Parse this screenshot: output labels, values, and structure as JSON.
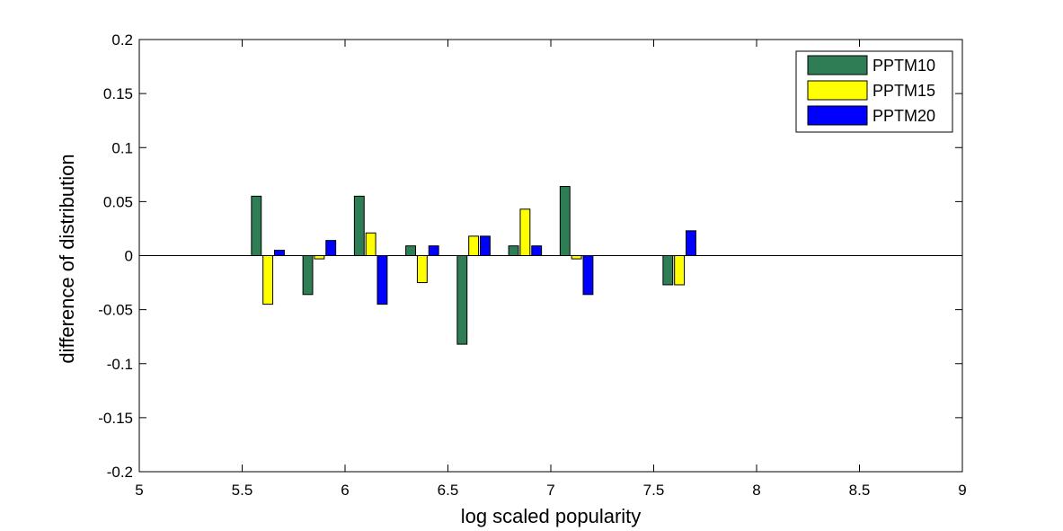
{
  "chart_data": {
    "type": "bar",
    "xlabel": "log scaled popularity",
    "ylabel": "difference of distribution",
    "xlim": [
      5,
      9
    ],
    "ylim": [
      -0.2,
      0.2
    ],
    "xticks": [
      "5",
      "5.5",
      "6",
      "6.5",
      "7",
      "7.5",
      "8",
      "8.5",
      "9"
    ],
    "yticks": [
      "-0.2",
      "-0.15",
      "-0.1",
      "-0.05",
      "0",
      "0.05",
      "0.1",
      "0.15",
      "0.2"
    ],
    "grid": false,
    "legend_position": "top-right",
    "x": [
      5.625,
      5.875,
      6.125,
      6.375,
      6.625,
      6.875,
      7.125,
      7.625
    ],
    "series": [
      {
        "name": "PPTM10",
        "color": "#2e7d55",
        "values": [
          0.055,
          -0.036,
          0.055,
          0.009,
          -0.082,
          0.009,
          0.064,
          -0.027
        ]
      },
      {
        "name": "PPTM15",
        "color": "#ffff00",
        "values": [
          -0.045,
          -0.003,
          0.021,
          -0.025,
          0.018,
          0.043,
          -0.003,
          -0.027
        ]
      },
      {
        "name": "PPTM20",
        "color": "#0000ff",
        "values": [
          0.005,
          0.014,
          -0.045,
          0.009,
          0.018,
          0.009,
          -0.036,
          0.023
        ]
      }
    ]
  }
}
